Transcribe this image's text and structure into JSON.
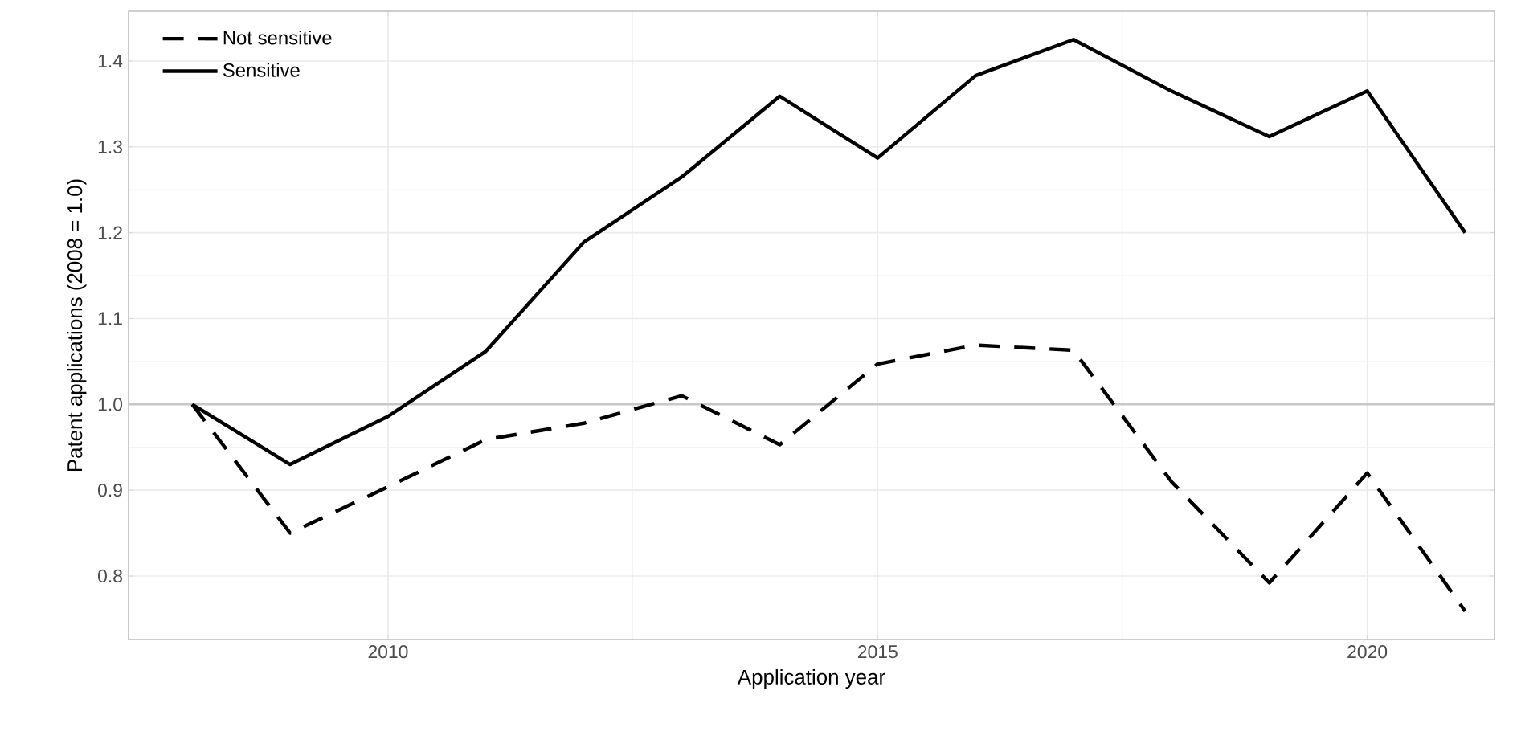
{
  "chart_data": {
    "type": "line",
    "xlabel": "Application year",
    "ylabel": "Patent applications (2008 = 1.0)",
    "x": [
      2008,
      2009,
      2010,
      2011,
      2012,
      2013,
      2014,
      2015,
      2016,
      2017,
      2018,
      2019,
      2020,
      2021
    ],
    "series": [
      {
        "name": "Not sensitive",
        "color": "#000000",
        "line_style": "dashed",
        "values": [
          1.0,
          0.85,
          0.904,
          0.959,
          0.978,
          1.01,
          0.953,
          1.047,
          1.069,
          1.063,
          0.91,
          0.792,
          0.92,
          0.759
        ]
      },
      {
        "name": "Sensitive",
        "color": "#000000",
        "line_style": "solid",
        "values": [
          1.0,
          0.93,
          0.986,
          1.062,
          1.189,
          1.265,
          1.359,
          1.287,
          1.383,
          1.425,
          1.365,
          1.312,
          1.365,
          1.2
        ]
      }
    ],
    "xlim": [
      2007.35,
      2021.3
    ],
    "ylim": [
      0.726,
      1.458
    ],
    "xticks": [
      2010,
      2015,
      2020
    ],
    "yticks": [
      0.8,
      0.9,
      {
        "value": 1.0,
        "label": "1.0"
      },
      1.1,
      1.2,
      1.3,
      1.4
    ],
    "ref_lines": [
      {
        "axis": "y",
        "value": 1.0,
        "color": "#c8c8c8"
      }
    ],
    "grid": true,
    "legend": "top left",
    "marker": "none"
  }
}
